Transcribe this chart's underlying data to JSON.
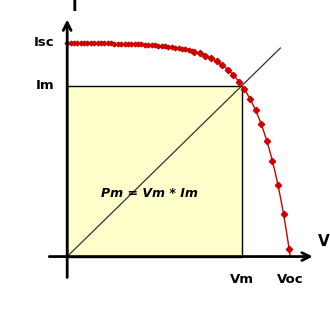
{
  "Isc": 0.9,
  "Im": 0.72,
  "Vm": 0.76,
  "Voc": 0.97,
  "n_calc_ratio": 0.18,
  "curve_color": "#cc0000",
  "fill_color": "#ffffcc",
  "fill_edge_color": "#000000",
  "diagonal_color": "#333333",
  "axis_color": "#000000",
  "label_I": "I",
  "label_V": "V",
  "label_Isc": "Isc",
  "label_Im": "Im",
  "label_Vm": "Vm",
  "label_Voc": "Voc",
  "label_Pm": "Pm = Vm * Im",
  "bg_color": "#ffffff",
  "n_markers_flat": 38,
  "n_markers_drop": 18,
  "marker_size": 3.2
}
